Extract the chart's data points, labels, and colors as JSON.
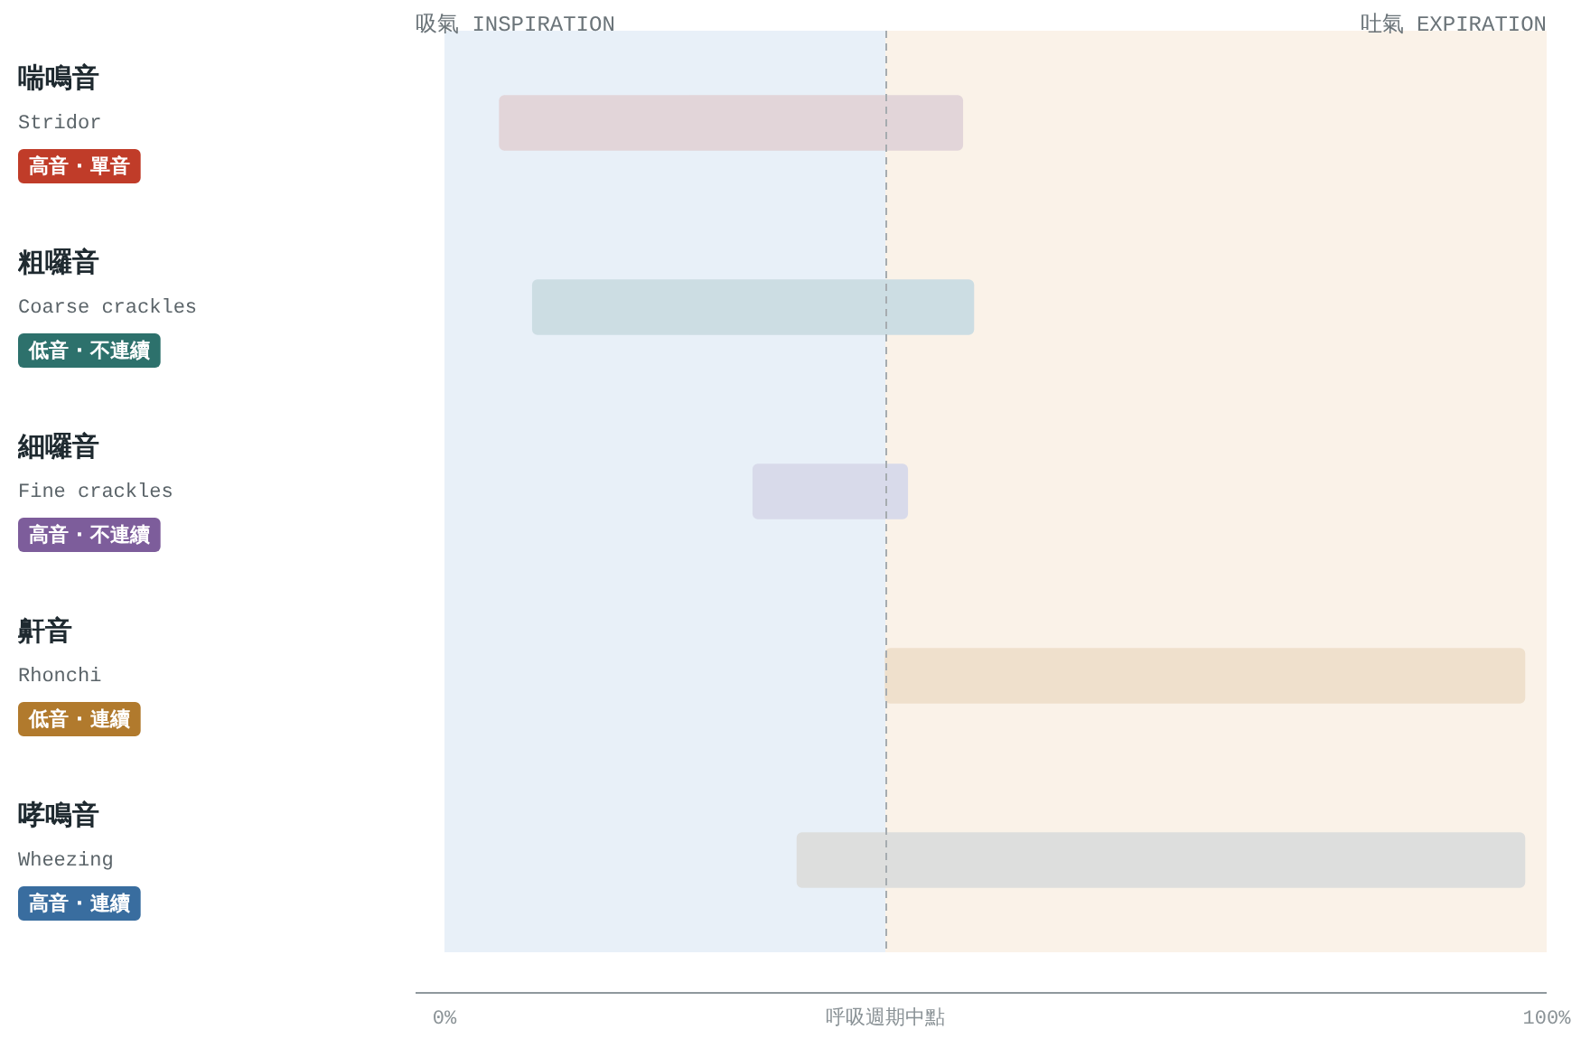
{
  "chart_data": {
    "type": "bar",
    "orientation": "horizontal",
    "categories": [
      "喘鳴音\nStridor\n高音 · 單音",
      "粗囉音\nCoarse crackles\n低音 · 不連續",
      "細囉音\nFine crackles\n高音 · 不連續",
      "鼾音\nRhonchi\n低音 · 連續",
      "哮鳴音\nWheezing\n高音 · 連續"
    ],
    "base": [
      5,
      8,
      28,
      40,
      32
    ],
    "values": [
      42,
      40,
      14,
      58,
      66
    ],
    "colors": [
      "#e2d5d9",
      "#ccdde3",
      "#d8daea",
      "#efe0cc",
      "#dddedd"
    ],
    "xlim": [
      0,
      100
    ],
    "xticks": [
      {
        "value": 0,
        "label": "0%"
      },
      {
        "value": 40,
        "label": "呼吸週期中點"
      },
      {
        "value": 100,
        "label": "100%"
      }
    ],
    "bands": [
      {
        "axis": "x",
        "from": 0,
        "to": 40,
        "label": "吸氣 INSPIRATION",
        "color": "#e8f0f8"
      },
      {
        "axis": "x",
        "from": 40,
        "to": 100,
        "label": "吐氣 EXPIRATION",
        "color": "#faf2e8"
      }
    ],
    "ref_lines": [
      {
        "axis": "x",
        "value": 40,
        "line_style": "dashed",
        "color": "#a6acb0"
      }
    ]
  }
}
